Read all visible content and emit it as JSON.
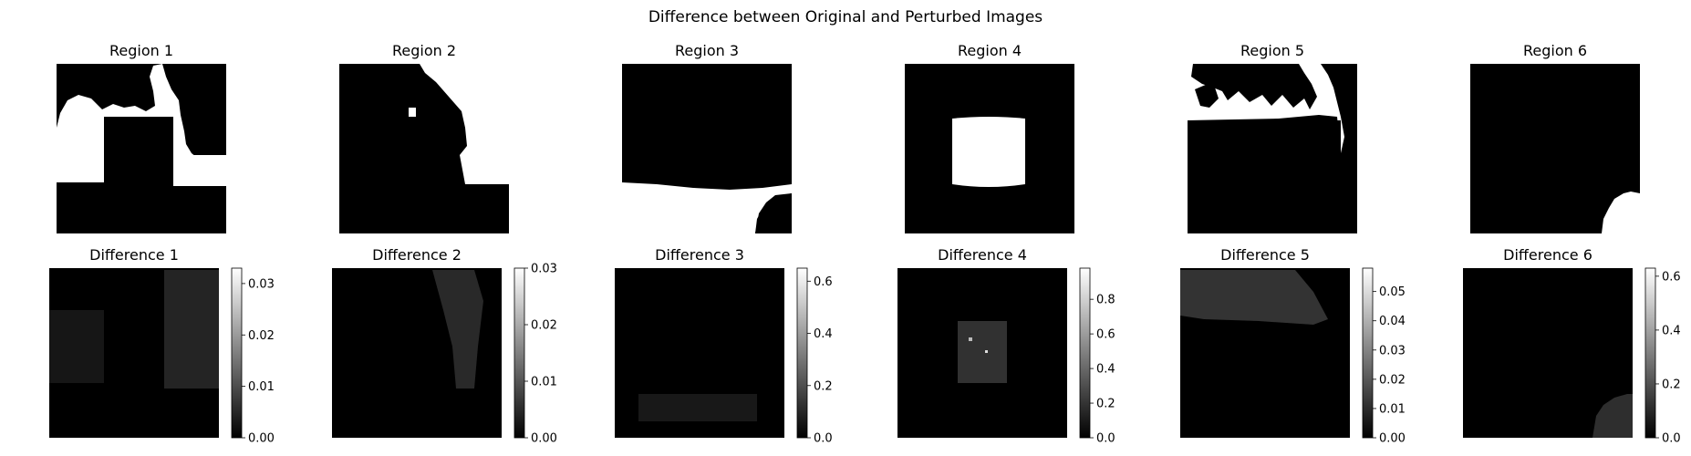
{
  "figure": {
    "title": "Difference between Original and Perturbed Images"
  },
  "chart_data": [
    {
      "type": "heatmap",
      "title": "Region 1",
      "colormap": "binary",
      "description": "binary mask"
    },
    {
      "type": "heatmap",
      "title": "Region 2",
      "colormap": "binary",
      "description": "binary mask"
    },
    {
      "type": "heatmap",
      "title": "Region 3",
      "colormap": "binary",
      "description": "binary mask"
    },
    {
      "type": "heatmap",
      "title": "Region 4",
      "colormap": "binary",
      "description": "binary mask"
    },
    {
      "type": "heatmap",
      "title": "Region 5",
      "colormap": "binary",
      "description": "binary mask"
    },
    {
      "type": "heatmap",
      "title": "Region 6",
      "colormap": "binary",
      "description": "binary mask"
    },
    {
      "type": "heatmap",
      "title": "Difference 1",
      "colormap": "gray",
      "vmin": 0,
      "vmax": 0.033,
      "colorbar_ticks": [
        0,
        0.01,
        0.02,
        0.03
      ],
      "colorbar_labels": [
        "0.00",
        "0.01",
        "0.02",
        "0.03"
      ]
    },
    {
      "type": "heatmap",
      "title": "Difference 2",
      "colormap": "gray",
      "vmin": 0,
      "vmax": 0.03,
      "colorbar_ticks": [
        0,
        0.01,
        0.02,
        0.03
      ],
      "colorbar_labels": [
        "0.00",
        "0.01",
        "0.02",
        "0.03"
      ]
    },
    {
      "type": "heatmap",
      "title": "Difference 3",
      "colormap": "gray",
      "vmin": 0,
      "vmax": 0.65,
      "colorbar_ticks": [
        0,
        0.2,
        0.4,
        0.6
      ],
      "colorbar_labels": [
        "0.0",
        "0.2",
        "0.4",
        "0.6"
      ]
    },
    {
      "type": "heatmap",
      "title": "Difference 4",
      "colormap": "gray",
      "vmin": 0,
      "vmax": 0.98,
      "colorbar_ticks": [
        0,
        0.2,
        0.4,
        0.6,
        0.8
      ],
      "colorbar_labels": [
        "0.0",
        "0.2",
        "0.4",
        "0.6",
        "0.8"
      ]
    },
    {
      "type": "heatmap",
      "title": "Difference 5",
      "colormap": "gray",
      "vmin": 0,
      "vmax": 0.058,
      "colorbar_ticks": [
        0,
        0.01,
        0.02,
        0.03,
        0.04,
        0.05
      ],
      "colorbar_labels": [
        "0.00",
        "0.01",
        "0.02",
        "0.03",
        "0.04",
        "0.05"
      ]
    },
    {
      "type": "heatmap",
      "title": "Difference 6",
      "colormap": "gray",
      "vmin": 0,
      "vmax": 0.63,
      "colorbar_ticks": [
        0,
        0.2,
        0.4,
        0.6
      ],
      "colorbar_labels": [
        "0.0",
        "0.2",
        "0.4",
        "0.6"
      ]
    }
  ]
}
